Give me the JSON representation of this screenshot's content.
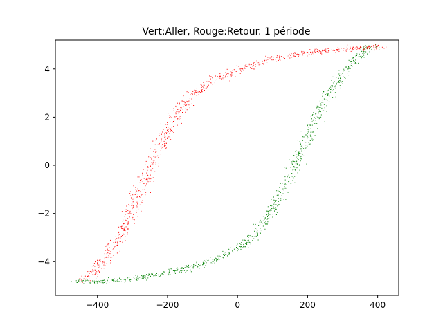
{
  "chart_data": {
    "type": "scatter",
    "title": "Vert:Aller, Rouge:Retour. 1 période",
    "xlabel": "",
    "ylabel": "",
    "xlim": [
      -520,
      460
    ],
    "ylim": [
      -5.4,
      5.2
    ],
    "x_ticks": [
      -400,
      -200,
      0,
      200,
      400
    ],
    "x_tick_labels": [
      "−400",
      "−200",
      "0",
      "200",
      "400"
    ],
    "y_ticks": [
      -4,
      -2,
      0,
      2,
      4
    ],
    "y_tick_labels": [
      "−4",
      "−2",
      "0",
      "2",
      "4"
    ],
    "grid": false,
    "legend": "none",
    "colors": {
      "aller": "#008000",
      "retour": "#ff0000"
    },
    "series": [
      {
        "color": "#008000",
        "points_per_trace": 900,
        "spread": 10,
        "trace": [
          [
            -455,
            -4.85
          ],
          [
            -400,
            -4.82
          ],
          [
            -300,
            -4.7
          ],
          [
            -200,
            -4.45
          ],
          [
            -100,
            -4.1
          ],
          [
            -30,
            -3.65
          ],
          [
            20,
            -3.25
          ],
          [
            60,
            -2.7
          ],
          [
            90,
            -2.1
          ],
          [
            120,
            -1.3
          ],
          [
            150,
            -0.5
          ],
          [
            175,
            0.4
          ],
          [
            200,
            1.2
          ],
          [
            230,
            2.2
          ],
          [
            260,
            3.0
          ],
          [
            300,
            3.8
          ],
          [
            340,
            4.5
          ],
          [
            370,
            4.85
          ],
          [
            395,
            5.0
          ]
        ]
      },
      {
        "color": "#ff0000",
        "points_per_trace": 900,
        "spread": 12,
        "trace": [
          [
            410,
            4.95
          ],
          [
            300,
            4.85
          ],
          [
            200,
            4.7
          ],
          [
            100,
            4.45
          ],
          [
            0,
            4.0
          ],
          [
            -80,
            3.45
          ],
          [
            -140,
            2.8
          ],
          [
            -180,
            2.0
          ],
          [
            -210,
            1.2
          ],
          [
            -240,
            0.2
          ],
          [
            -270,
            -0.8
          ],
          [
            -300,
            -1.8
          ],
          [
            -330,
            -2.8
          ],
          [
            -370,
            -3.7
          ],
          [
            -410,
            -4.4
          ],
          [
            -445,
            -4.82
          ]
        ]
      }
    ]
  }
}
